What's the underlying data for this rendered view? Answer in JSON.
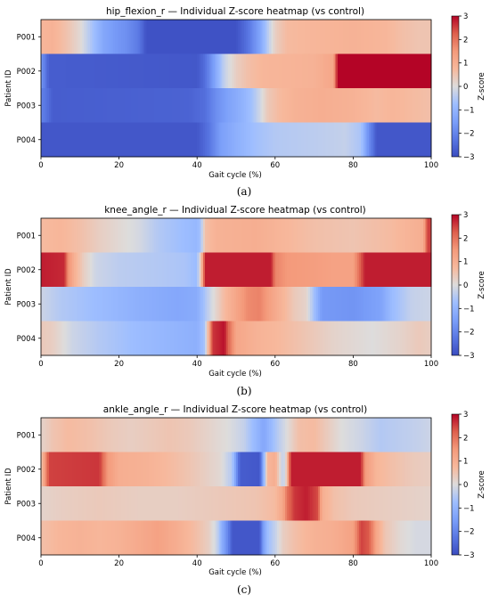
{
  "chart_data": [
    {
      "type": "heatmap",
      "title": "hip_flexion_r — Individual Z-score heatmap (vs control)",
      "xlabel": "Gait cycle (%)",
      "ylabel": "Patient ID",
      "caption": "(a)",
      "rows": [
        "P001",
        "P002",
        "P003",
        "P004"
      ],
      "xlim": [
        0,
        100
      ],
      "xticks": [
        0,
        20,
        40,
        60,
        80,
        100
      ],
      "colorbar": {
        "label": "Z-score",
        "ticks": [
          -3,
          -2,
          -1,
          0,
          1,
          2,
          3
        ],
        "range": [
          -3,
          3
        ],
        "colormap": "coolwarm"
      },
      "values": [
        [
          [
            0,
            0.8
          ],
          [
            3,
            0.9
          ],
          [
            7,
            0.5
          ],
          [
            10,
            0.1
          ],
          [
            13,
            -0.6
          ],
          [
            16,
            -1.3
          ],
          [
            19,
            -1.6
          ],
          [
            22,
            -1.8
          ],
          [
            25,
            -2.2
          ],
          [
            27,
            -2.9
          ],
          [
            50,
            -2.9
          ],
          [
            53,
            -2.3
          ],
          [
            56,
            -1.4
          ],
          [
            58,
            -0.5
          ],
          [
            60,
            0.3
          ],
          [
            63,
            0.7
          ],
          [
            70,
            0.8
          ],
          [
            80,
            0.9
          ],
          [
            88,
            0.8
          ],
          [
            93,
            0.6
          ],
          [
            97,
            0.5
          ],
          [
            100,
            0.5
          ]
        ],
        [
          [
            0,
            -1.6
          ],
          [
            2,
            -2.7
          ],
          [
            40,
            -2.8
          ],
          [
            42,
            -2.4
          ],
          [
            44,
            -1.6
          ],
          [
            47,
            -0.3
          ],
          [
            50,
            0.3
          ],
          [
            53,
            0.6
          ],
          [
            57,
            0.8
          ],
          [
            70,
            0.9
          ],
          [
            75,
            1.2
          ],
          [
            76,
            3.0
          ],
          [
            100,
            3.0
          ]
        ],
        [
          [
            0,
            -2.0
          ],
          [
            3,
            -2.7
          ],
          [
            38,
            -2.6
          ],
          [
            42,
            -2.4
          ],
          [
            45,
            -1.8
          ],
          [
            48,
            -1.4
          ],
          [
            51,
            -1.1
          ],
          [
            54,
            -0.7
          ],
          [
            56,
            -0.2
          ],
          [
            58,
            0.4
          ],
          [
            61,
            0.7
          ],
          [
            65,
            0.9
          ],
          [
            72,
            1.0
          ],
          [
            80,
            0.9
          ],
          [
            86,
            0.7
          ],
          [
            90,
            0.8
          ],
          [
            95,
            0.7
          ],
          [
            100,
            0.6
          ]
        ],
        [
          [
            0,
            -2.8
          ],
          [
            40,
            -2.8
          ],
          [
            43,
            -2.3
          ],
          [
            46,
            -1.5
          ],
          [
            50,
            -1.1
          ],
          [
            55,
            -0.7
          ],
          [
            60,
            -0.5
          ],
          [
            70,
            -0.4
          ],
          [
            78,
            -0.3
          ],
          [
            82,
            -0.6
          ],
          [
            84,
            -1.8
          ],
          [
            86,
            -2.8
          ],
          [
            100,
            -2.8
          ]
        ]
      ]
    },
    {
      "type": "heatmap",
      "title": "knee_angle_r — Individual Z-score heatmap (vs control)",
      "xlabel": "Gait cycle (%)",
      "ylabel": "Patient ID",
      "caption": "(b)",
      "rows": [
        "P001",
        "P002",
        "P003",
        "P004"
      ],
      "xlim": [
        0,
        100
      ],
      "xticks": [
        0,
        20,
        40,
        60,
        80,
        100
      ],
      "colorbar": {
        "label": "Z-score",
        "ticks": [
          -3,
          -2,
          -1,
          0,
          1,
          2,
          3
        ],
        "range": [
          -3,
          3
        ],
        "colormap": "coolwarm"
      },
      "values": [
        [
          [
            0,
            0.7
          ],
          [
            5,
            0.8
          ],
          [
            10,
            0.6
          ],
          [
            15,
            0.3
          ],
          [
            20,
            0.1
          ],
          [
            25,
            -0.1
          ],
          [
            30,
            -0.5
          ],
          [
            35,
            -0.7
          ],
          [
            40,
            -0.9
          ],
          [
            41,
            -0.6
          ],
          [
            42,
            0.6
          ],
          [
            45,
            0.9
          ],
          [
            55,
            1.0
          ],
          [
            62,
            0.8
          ],
          [
            70,
            0.6
          ],
          [
            80,
            0.5
          ],
          [
            90,
            0.7
          ],
          [
            98,
            1.0
          ],
          [
            99,
            2.5
          ],
          [
            100,
            2.5
          ]
        ],
        [
          [
            0,
            2.8
          ],
          [
            6,
            2.7
          ],
          [
            7,
            1.6
          ],
          [
            9,
            0.8
          ],
          [
            11,
            0.3
          ],
          [
            14,
            -0.2
          ],
          [
            20,
            -0.4
          ],
          [
            30,
            -0.5
          ],
          [
            37,
            -0.6
          ],
          [
            40,
            -0.8
          ],
          [
            41,
            0.5
          ],
          [
            42,
            2.8
          ],
          [
            59,
            2.8
          ],
          [
            60,
            1.8
          ],
          [
            63,
            1.5
          ],
          [
            70,
            1.4
          ],
          [
            75,
            1.3
          ],
          [
            80,
            1.3
          ],
          [
            83,
            2.8
          ],
          [
            100,
            2.8
          ]
        ],
        [
          [
            0,
            -0.2
          ],
          [
            5,
            -0.5
          ],
          [
            15,
            -0.8
          ],
          [
            25,
            -1.1
          ],
          [
            35,
            -1.3
          ],
          [
            40,
            -1.2
          ],
          [
            43,
            -0.3
          ],
          [
            47,
            0.7
          ],
          [
            50,
            1.2
          ],
          [
            53,
            1.7
          ],
          [
            56,
            1.8
          ],
          [
            60,
            1.1
          ],
          [
            65,
            0.4
          ],
          [
            68,
            0.2
          ],
          [
            70,
            -0.7
          ],
          [
            72,
            -1.6
          ],
          [
            80,
            -1.7
          ],
          [
            87,
            -1.4
          ],
          [
            90,
            -0.8
          ],
          [
            95,
            -0.3
          ],
          [
            100,
            -0.2
          ]
        ],
        [
          [
            0,
            0.4
          ],
          [
            3,
            0.3
          ],
          [
            8,
            -0.2
          ],
          [
            15,
            -0.5
          ],
          [
            25,
            -0.8
          ],
          [
            35,
            -1.0
          ],
          [
            40,
            -1.1
          ],
          [
            42,
            -0.6
          ],
          [
            43,
            1.0
          ],
          [
            44,
            2.6
          ],
          [
            47,
            2.9
          ],
          [
            48,
            2.2
          ],
          [
            50,
            1.2
          ],
          [
            55,
            0.9
          ],
          [
            62,
            0.7
          ],
          [
            70,
            0.4
          ],
          [
            75,
            0.2
          ],
          [
            80,
            0.1
          ],
          [
            85,
            0.0
          ],
          [
            92,
            0.2
          ],
          [
            97,
            0.4
          ],
          [
            100,
            0.3
          ]
        ]
      ]
    },
    {
      "type": "heatmap",
      "title": "ankle_angle_r — Individual Z-score heatmap (vs control)",
      "xlabel": "Gait cycle (%)",
      "ylabel": "Patient ID",
      "caption": "(c)",
      "rows": [
        "P001",
        "P002",
        "P003",
        "P004"
      ],
      "xlim": [
        0,
        100
      ],
      "xticks": [
        0,
        20,
        40,
        60,
        80,
        100
      ],
      "colorbar": {
        "label": "Z-score",
        "ticks": [
          -3,
          -2,
          -1,
          0,
          1,
          2,
          3
        ],
        "range": [
          -3,
          3
        ],
        "colormap": "coolwarm"
      },
      "values": [
        [
          [
            0,
            0.2
          ],
          [
            3,
            0.5
          ],
          [
            7,
            0.7
          ],
          [
            12,
            0.6
          ],
          [
            18,
            0.4
          ],
          [
            23,
            0.3
          ],
          [
            28,
            0.4
          ],
          [
            33,
            0.5
          ],
          [
            38,
            0.4
          ],
          [
            43,
            0.2
          ],
          [
            48,
            0.0
          ],
          [
            52,
            -0.3
          ],
          [
            55,
            -0.9
          ],
          [
            57,
            -1.3
          ],
          [
            58,
            -1.1
          ],
          [
            60,
            -0.6
          ],
          [
            63,
            0.0
          ],
          [
            66,
            0.6
          ],
          [
            70,
            0.7
          ],
          [
            73,
            0.4
          ],
          [
            77,
            0.0
          ],
          [
            82,
            -0.2
          ],
          [
            87,
            -0.5
          ],
          [
            92,
            -0.4
          ],
          [
            97,
            -0.3
          ],
          [
            100,
            -0.2
          ]
        ],
        [
          [
            0,
            0.4
          ],
          [
            2,
            2.5
          ],
          [
            15,
            2.6
          ],
          [
            17,
            1.5
          ],
          [
            20,
            1.0
          ],
          [
            27,
            0.9
          ],
          [
            33,
            0.7
          ],
          [
            38,
            0.5
          ],
          [
            42,
            0.3
          ],
          [
            46,
            0.1
          ],
          [
            49,
            -0.5
          ],
          [
            51,
            -2.7
          ],
          [
            56,
            -2.8
          ],
          [
            57,
            -1.2
          ],
          [
            58,
            0.8
          ],
          [
            60,
            1.0
          ],
          [
            62,
            -0.4
          ],
          [
            63,
            0.5
          ],
          [
            64,
            2.8
          ],
          [
            82,
            2.8
          ],
          [
            83,
            1.5
          ],
          [
            86,
            0.8
          ],
          [
            90,
            0.6
          ],
          [
            95,
            0.4
          ],
          [
            100,
            0.3
          ]
        ],
        [
          [
            0,
            0.2
          ],
          [
            5,
            0.3
          ],
          [
            15,
            0.4
          ],
          [
            25,
            0.3
          ],
          [
            35,
            0.3
          ],
          [
            45,
            0.4
          ],
          [
            55,
            0.5
          ],
          [
            60,
            0.7
          ],
          [
            62,
            1.2
          ],
          [
            63,
            2.0
          ],
          [
            64,
            2.3
          ],
          [
            65,
            2.6
          ],
          [
            68,
            2.8
          ],
          [
            71,
            2.4
          ],
          [
            72,
            1.0
          ],
          [
            75,
            0.6
          ],
          [
            80,
            0.4
          ],
          [
            90,
            0.3
          ],
          [
            100,
            0.2
          ]
        ],
        [
          [
            0,
            0.6
          ],
          [
            5,
            0.8
          ],
          [
            10,
            0.9
          ],
          [
            15,
            0.8
          ],
          [
            20,
            0.9
          ],
          [
            25,
            1.1
          ],
          [
            30,
            1.3
          ],
          [
            35,
            1.0
          ],
          [
            40,
            0.6
          ],
          [
            43,
            0.3
          ],
          [
            45,
            -0.2
          ],
          [
            47,
            -1.5
          ],
          [
            48,
            -2.0
          ],
          [
            49,
            -2.8
          ],
          [
            56,
            -2.8
          ],
          [
            57,
            -1.5
          ],
          [
            58,
            -0.8
          ],
          [
            60,
            -0.3
          ],
          [
            62,
            0.3
          ],
          [
            65,
            0.6
          ],
          [
            70,
            0.9
          ],
          [
            75,
            1.0
          ],
          [
            80,
            1.3
          ],
          [
            82,
            2.5
          ],
          [
            84,
            2.3
          ],
          [
            86,
            1.2
          ],
          [
            88,
            0.5
          ],
          [
            92,
            0.1
          ],
          [
            96,
            -0.1
          ],
          [
            100,
            -0.1
          ]
        ]
      ]
    }
  ]
}
